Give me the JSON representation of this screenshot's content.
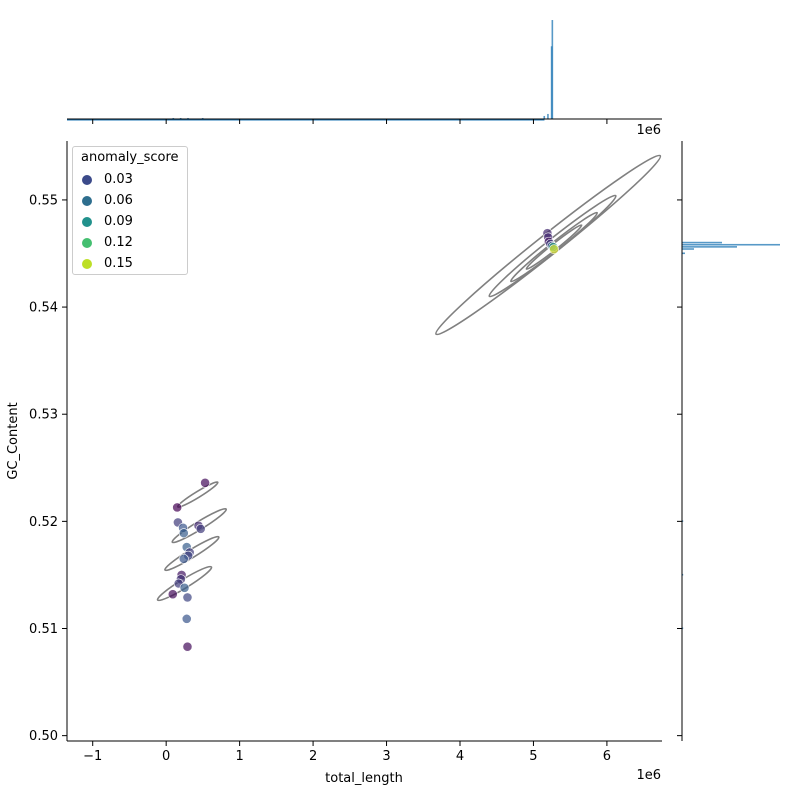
{
  "chart_data": {
    "type": "scatter",
    "subtype": "jointplot with KDE contours and marginal histograms",
    "xlabel": "total_length",
    "ylabel": "GC_Content",
    "x_offset_label": "1e6",
    "xlim": [
      -1350000,
      6750000
    ],
    "ylim": [
      0.4995,
      0.5555
    ],
    "xticks": [
      -1000000,
      0,
      1000000,
      2000000,
      3000000,
      4000000,
      5000000,
      6000000
    ],
    "xtick_labels": [
      "−1",
      "0",
      "1",
      "2",
      "3",
      "4",
      "5",
      "6"
    ],
    "yticks": [
      0.5,
      0.51,
      0.52,
      0.53,
      0.54,
      0.55
    ],
    "ytick_labels": [
      "0.50",
      "0.51",
      "0.52",
      "0.53",
      "0.54",
      "0.55"
    ],
    "grid": false,
    "legend": {
      "title": "anomaly_score",
      "placement": "top-left",
      "entries": [
        {
          "label": "0.03",
          "color": "#3b4a8a"
        },
        {
          "label": "0.06",
          "color": "#2e6e8e"
        },
        {
          "label": "0.09",
          "color": "#21918c"
        },
        {
          "label": "0.12",
          "color": "#44bf70"
        },
        {
          "label": "0.15",
          "color": "#bddf26"
        }
      ]
    },
    "colormap": [
      "#440154",
      "#3b528b",
      "#21918c",
      "#5ec962",
      "#fde725"
    ],
    "color_range": [
      0.0,
      0.17
    ],
    "points": [
      {
        "x": 150000,
        "y": 0.5213,
        "score": 0.0
      },
      {
        "x": 530000,
        "y": 0.5236,
        "score": 0.005
      },
      {
        "x": 160000,
        "y": 0.5199,
        "score": 0.03
      },
      {
        "x": 230000,
        "y": 0.5194,
        "score": 0.045
      },
      {
        "x": 240000,
        "y": 0.5189,
        "score": 0.05
      },
      {
        "x": 440000,
        "y": 0.5196,
        "score": 0.02
      },
      {
        "x": 470000,
        "y": 0.5193,
        "score": 0.03
      },
      {
        "x": 280000,
        "y": 0.5176,
        "score": 0.05
      },
      {
        "x": 320000,
        "y": 0.5171,
        "score": 0.03
      },
      {
        "x": 300000,
        "y": 0.5168,
        "score": 0.035
      },
      {
        "x": 240000,
        "y": 0.5165,
        "score": 0.045
      },
      {
        "x": 210000,
        "y": 0.515,
        "score": 0.01
      },
      {
        "x": 200000,
        "y": 0.5146,
        "score": 0.025
      },
      {
        "x": 170000,
        "y": 0.5142,
        "score": 0.03
      },
      {
        "x": 250000,
        "y": 0.5138,
        "score": 0.05
      },
      {
        "x": 90000,
        "y": 0.5132,
        "score": 0.005
      },
      {
        "x": 290000,
        "y": 0.5129,
        "score": 0.035
      },
      {
        "x": 280000,
        "y": 0.5109,
        "score": 0.045
      },
      {
        "x": 290000,
        "y": 0.5083,
        "score": 0.005
      },
      {
        "x": 5190000,
        "y": 0.5469,
        "score": 0.02
      },
      {
        "x": 5200000,
        "y": 0.5465,
        "score": 0.02
      },
      {
        "x": 5210000,
        "y": 0.5461,
        "score": 0.01
      },
      {
        "x": 5230000,
        "y": 0.5459,
        "score": 0.03
      },
      {
        "x": 5250000,
        "y": 0.5457,
        "score": 0.05
      },
      {
        "x": 5270000,
        "y": 0.5456,
        "score": 0.1
      },
      {
        "x": 5280000,
        "y": 0.5454,
        "score": 0.16
      }
    ],
    "kde_contours": [
      {
        "cx": 250000,
        "cy": 0.5142,
        "a": 430000,
        "b": 60000,
        "angle_deg": 18
      },
      {
        "cx": 350000,
        "cy": 0.517,
        "a": 430000,
        "b": 55000,
        "angle_deg": 18
      },
      {
        "cx": 450000,
        "cy": 0.5196,
        "a": 430000,
        "b": 55000,
        "angle_deg": 18
      },
      {
        "cx": 430000,
        "cy": 0.5225,
        "a": 320000,
        "b": 40000,
        "angle_deg": 18
      },
      {
        "cx": 5200000,
        "cy": 0.5458,
        "a": 1950000,
        "b": 140000,
        "angle_deg": 22
      },
      {
        "cx": 5260000,
        "cy": 0.5457,
        "a": 1100000,
        "b": 90000,
        "angle_deg": 22
      },
      {
        "cx": 5280000,
        "cy": 0.5456,
        "a": 750000,
        "b": 60000,
        "angle_deg": 22
      },
      {
        "cx": 5280000,
        "cy": 0.5456,
        "a": 480000,
        "b": 40000,
        "angle_deg": 22
      }
    ],
    "marginal_x_histogram": {
      "color": "#1f77b4",
      "bins": [
        {
          "x": 100000,
          "count": 1
        },
        {
          "x": 200000,
          "count": 1
        },
        {
          "x": 300000,
          "count": 1
        },
        {
          "x": 500000,
          "count": 1
        },
        {
          "x": 5150000,
          "count": 3
        },
        {
          "x": 5200000,
          "count": 5
        },
        {
          "x": 5250000,
          "count": 72
        },
        {
          "x": 5260000,
          "count": 98
        }
      ],
      "max_count": 100
    },
    "marginal_y_histogram": {
      "color": "#1f77b4",
      "bins": [
        {
          "y": 0.546,
          "count": 40
        },
        {
          "y": 0.5458,
          "count": 98
        },
        {
          "y": 0.5456,
          "count": 55
        },
        {
          "y": 0.5454,
          "count": 12
        },
        {
          "y": 0.545,
          "count": 3
        },
        {
          "y": 0.52,
          "count": 1
        },
        {
          "y": 0.515,
          "count": 1
        },
        {
          "y": 0.51,
          "count": 1
        }
      ],
      "max_count": 100
    }
  }
}
